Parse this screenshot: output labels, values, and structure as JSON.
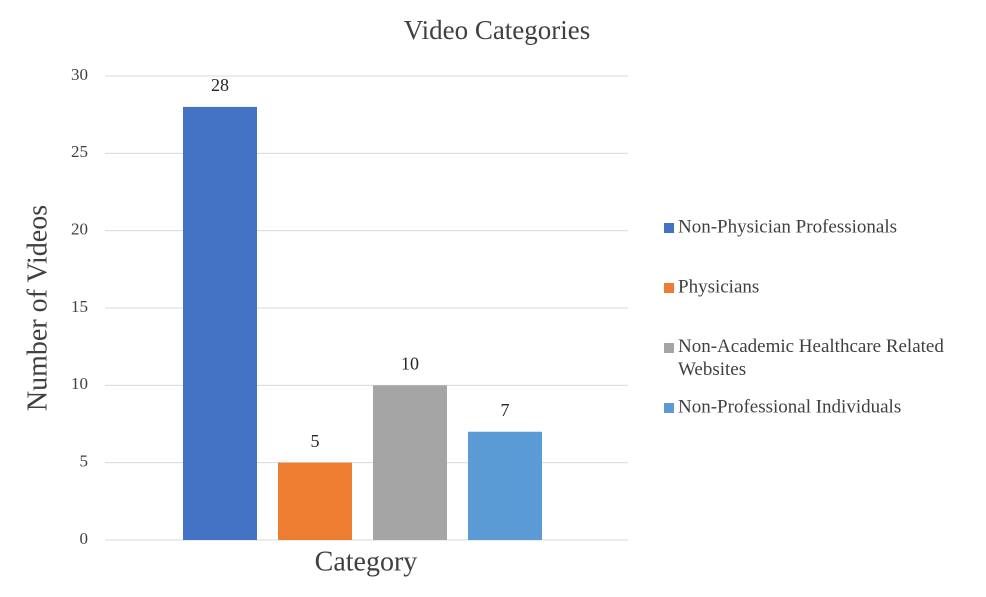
{
  "chart_data": {
    "type": "bar",
    "title": "Video Categories",
    "x_label": "Category",
    "y_label": "Number of Videos",
    "categories": [
      null
    ],
    "series": [
      {
        "name": "Non-Physician Professionals",
        "color": "#4472c4",
        "values": [
          28
        ]
      },
      {
        "name": "Physicians",
        "color": "#ed7d31",
        "values": [
          5
        ]
      },
      {
        "name": "Non-Academic Healthcare Related Websites",
        "color": "#a5a5a5",
        "values": [
          10
        ]
      },
      {
        "name": "Non-Professional Individuals",
        "color": "#5b9bd5",
        "values": [
          7
        ]
      }
    ],
    "ylim": [
      0,
      30
    ],
    "yticks": [
      0,
      5,
      10,
      15,
      20,
      25,
      30
    ],
    "grid": true,
    "legend": "right"
  }
}
